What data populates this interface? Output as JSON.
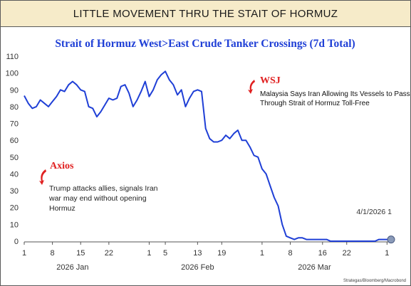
{
  "header": {
    "title": "LITTLE MOVEMENT THRU THE STAIT OF HORMUZ"
  },
  "colors": {
    "line": "#1f3fd6",
    "title": "#1f3fd6",
    "accent_red": "#e02020",
    "header_bg": "#f6ebc9"
  },
  "chart_data": {
    "type": "line",
    "title": "Strait of Hormuz West>East Crude Tanker Crossings (7d Total)",
    "ylim": [
      0,
      110
    ],
    "yticks": [
      0,
      10,
      20,
      30,
      40,
      50,
      60,
      70,
      80,
      90,
      100,
      110
    ],
    "xticks": [
      {
        "day": 1,
        "label": "1"
      },
      {
        "day": 8,
        "label": "8"
      },
      {
        "day": 15,
        "label": "15"
      },
      {
        "day": 22,
        "label": "22"
      },
      {
        "day": 32,
        "label": "1"
      },
      {
        "day": 36,
        "label": "5"
      },
      {
        "day": 44,
        "label": "13"
      },
      {
        "day": 50,
        "label": "19"
      },
      {
        "day": 60,
        "label": "1"
      },
      {
        "day": 67,
        "label": "8"
      },
      {
        "day": 75,
        "label": "16"
      },
      {
        "day": 81,
        "label": "22"
      },
      {
        "day": 91,
        "label": "1"
      }
    ],
    "month_labels": [
      {
        "day": 13,
        "label": "2026 Jan"
      },
      {
        "day": 44,
        "label": "2026 Feb"
      },
      {
        "day": 73,
        "label": "2026 Mar"
      }
    ],
    "series": [
      {
        "x": [
          1,
          2,
          3,
          4,
          5,
          6,
          7,
          8,
          9,
          10,
          11,
          12,
          13,
          14,
          15,
          16,
          17,
          18,
          19,
          20,
          21,
          22,
          23,
          24,
          25,
          26,
          27,
          28,
          29,
          30,
          31,
          32,
          33,
          34,
          35,
          36,
          37,
          38,
          39,
          40,
          41,
          42,
          43,
          44,
          45,
          46,
          47,
          48,
          49,
          50,
          51,
          52,
          53,
          54,
          55,
          56,
          57,
          58,
          59,
          60,
          61,
          62,
          63,
          64,
          65,
          66,
          67,
          68,
          69,
          70,
          71,
          72,
          73,
          74,
          75,
          76,
          77,
          78,
          79,
          80,
          81,
          82,
          83,
          84,
          85,
          86,
          87,
          88,
          89,
          90,
          91,
          92
        ],
        "y": [
          86.5,
          82,
          79,
          80,
          84,
          82,
          80,
          83,
          86,
          90,
          89,
          93,
          95,
          93,
          90,
          89,
          80,
          79,
          74,
          77,
          81,
          85,
          84,
          85,
          92,
          93,
          88,
          80,
          84,
          89,
          95,
          86,
          90,
          96,
          99,
          101,
          96,
          93,
          87,
          90,
          80,
          85,
          89,
          90,
          89,
          67,
          61,
          59,
          59,
          60,
          63,
          61,
          64,
          66,
          60,
          60,
          56,
          51,
          50,
          43,
          40,
          33,
          26,
          21,
          10,
          3,
          2,
          1,
          2,
          2,
          1,
          1,
          1,
          1,
          1,
          1,
          0,
          0,
          0,
          0,
          0,
          0,
          0,
          0,
          0,
          0,
          0,
          0,
          1,
          1,
          1,
          1
        ]
      }
    ],
    "last_point": {
      "x": 92,
      "y": 1,
      "label": "4/1/2026 1"
    },
    "annotations": [
      {
        "source": "WSJ",
        "text_lines": [
          "Malaysia Says Iran Allowing Its Vessels to Pass",
          "Through Strait of Hormuz Toll-Free"
        ]
      },
      {
        "source": "Axios",
        "text_lines": [
          "Trump attacks allies, signals Iran",
          "war may end without opening",
          "Hormuz"
        ]
      }
    ],
    "source_note": "Strategas/Bloomberg/Macrobond",
    "grid": false
  }
}
